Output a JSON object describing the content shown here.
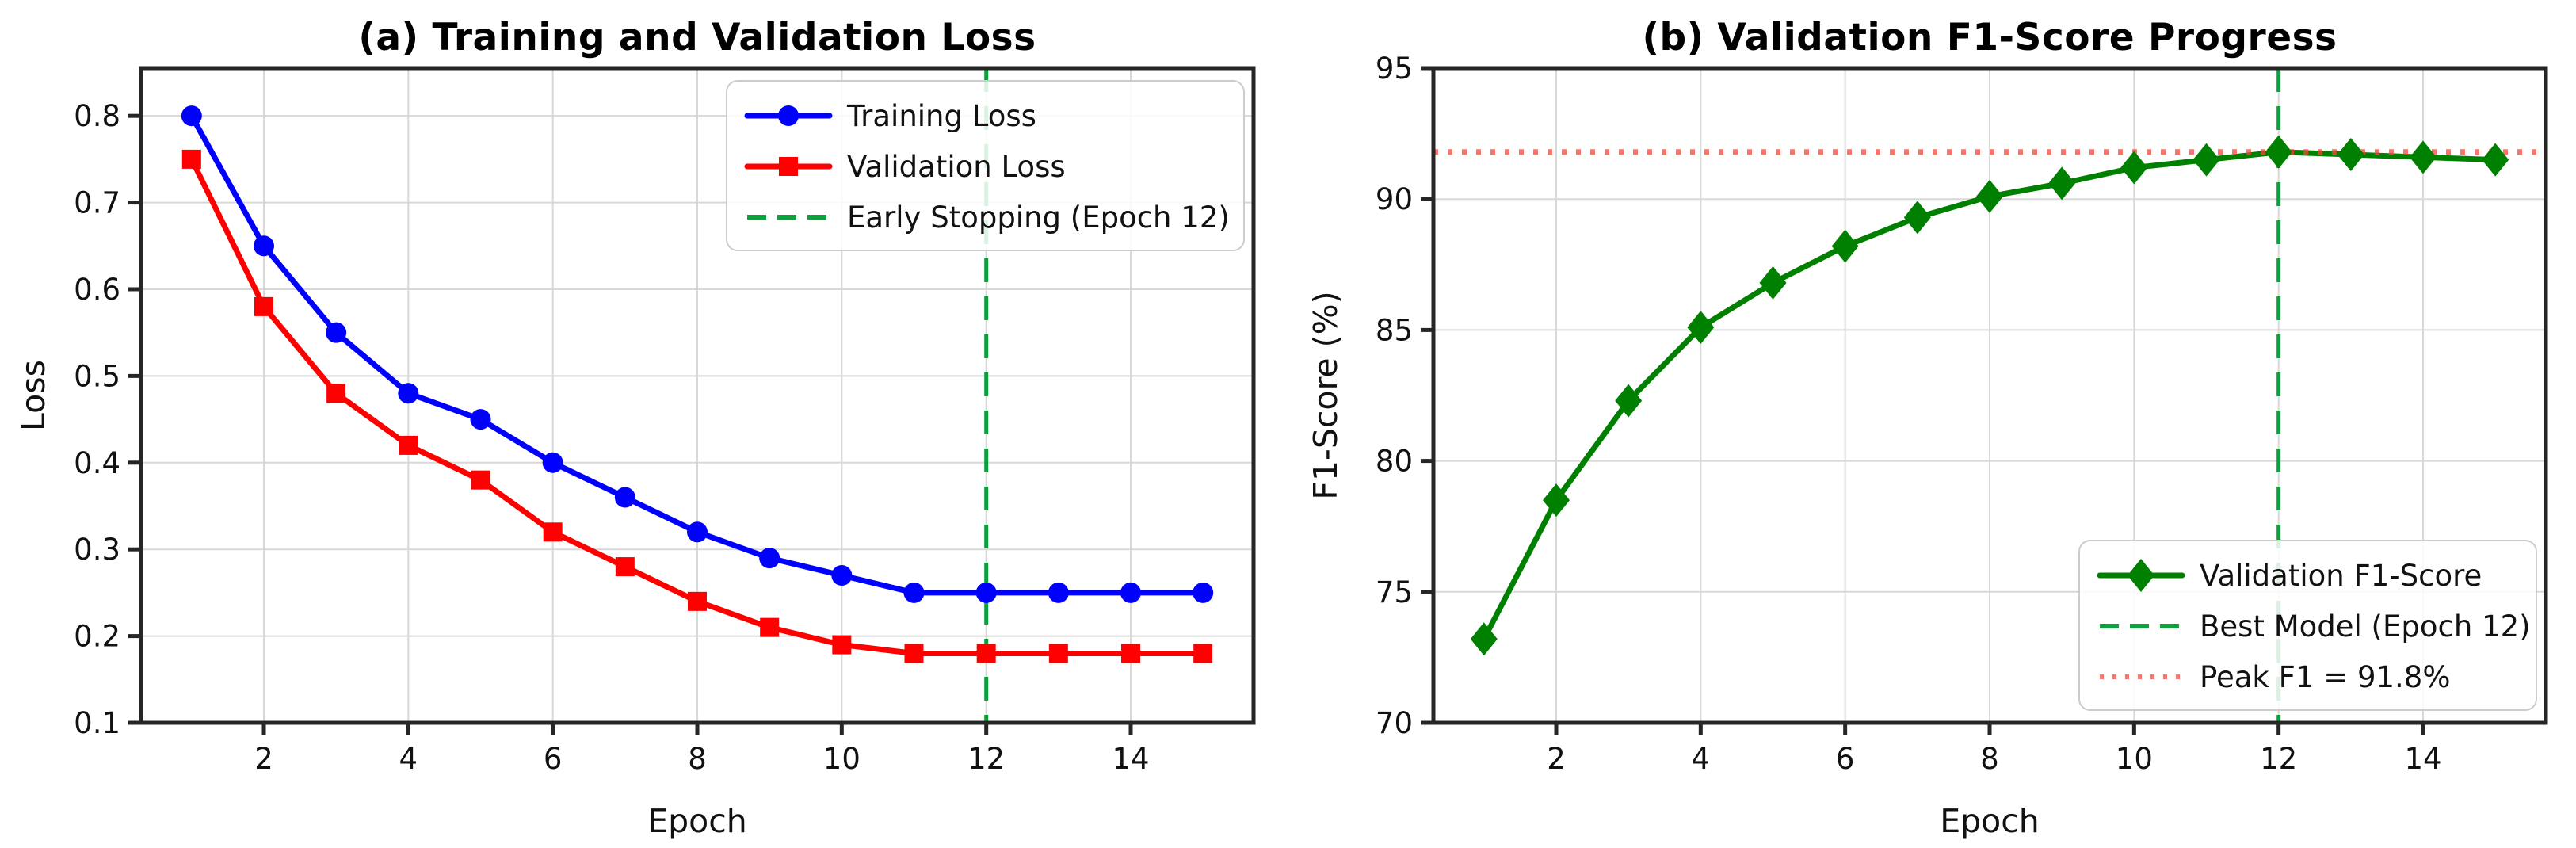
{
  "figure": {
    "background": "#ffffff",
    "grid_color": "#d8d8d8",
    "spine_color": "#262626"
  },
  "chart_data": [
    {
      "type": "line",
      "title": "(a) Training and Validation Loss",
      "xlabel": "Epoch",
      "ylabel": "Loss",
      "x": [
        1,
        2,
        3,
        4,
        5,
        6,
        7,
        8,
        9,
        10,
        11,
        12,
        13,
        14,
        15
      ],
      "xlim": [
        0.3,
        15.7
      ],
      "ylim": [
        0.1,
        0.855
      ],
      "xticks": [
        2,
        4,
        6,
        8,
        10,
        12,
        14
      ],
      "xtick_labels": [
        "2",
        "4",
        "6",
        "8",
        "10",
        "12",
        "14"
      ],
      "yticks": [
        0.1,
        0.2,
        0.3,
        0.4,
        0.5,
        0.6,
        0.7,
        0.8
      ],
      "ytick_labels": [
        "0.1",
        "0.2",
        "0.3",
        "0.4",
        "0.5",
        "0.6",
        "0.7",
        "0.8"
      ],
      "grid": true,
      "series": [
        {
          "name": "Training Loss",
          "color": "#0000ff",
          "marker": "circle",
          "line": "solid",
          "values": [
            0.8,
            0.65,
            0.55,
            0.48,
            0.45,
            0.4,
            0.36,
            0.32,
            0.29,
            0.27,
            0.25,
            0.25,
            0.25,
            0.25,
            0.25
          ]
        },
        {
          "name": "Validation Loss",
          "color": "#ff0000",
          "marker": "square",
          "line": "solid",
          "values": [
            0.75,
            0.58,
            0.48,
            0.42,
            0.38,
            0.32,
            0.28,
            0.24,
            0.21,
            0.19,
            0.18,
            0.18,
            0.18,
            0.18,
            0.18
          ]
        }
      ],
      "vline": {
        "x": 12,
        "color": "#0ca13c",
        "style": "dashed",
        "label": "Early Stopping (Epoch 12)"
      },
      "legend": {
        "position": "top-right",
        "entries": [
          "Training Loss",
          "Validation Loss",
          "Early Stopping (Epoch 12)"
        ]
      }
    },
    {
      "type": "line",
      "title": "(b) Validation F1-Score Progress",
      "xlabel": "Epoch",
      "ylabel": "F1-Score (%)",
      "x": [
        1,
        2,
        3,
        4,
        5,
        6,
        7,
        8,
        9,
        10,
        11,
        12,
        13,
        14,
        15
      ],
      "xlim": [
        0.3,
        15.7
      ],
      "ylim": [
        70,
        95
      ],
      "xticks": [
        2,
        4,
        6,
        8,
        10,
        12,
        14
      ],
      "xtick_labels": [
        "2",
        "4",
        "6",
        "8",
        "10",
        "12",
        "14"
      ],
      "yticks": [
        70,
        75,
        80,
        85,
        90,
        95
      ],
      "ytick_labels": [
        "70",
        "75",
        "80",
        "85",
        "90",
        "95"
      ],
      "grid": true,
      "series": [
        {
          "name": "Validation F1-Score",
          "color": "#008000",
          "marker": "diamond",
          "line": "solid",
          "values": [
            73.2,
            78.5,
            82.3,
            85.1,
            86.8,
            88.2,
            89.3,
            90.1,
            90.6,
            91.2,
            91.5,
            91.8,
            91.7,
            91.6,
            91.5
          ]
        }
      ],
      "vline": {
        "x": 12,
        "color": "#0ca13c",
        "style": "dashed",
        "label": "Best Model (Epoch 12)"
      },
      "hline": {
        "y": 91.8,
        "color": "#f2453a",
        "style": "dotted",
        "label": "Peak F1 = 91.8%"
      },
      "legend": {
        "position": "bottom-right",
        "entries": [
          "Validation F1-Score",
          "Best Model (Epoch 12)",
          "Peak F1 = 91.8%"
        ]
      }
    }
  ]
}
